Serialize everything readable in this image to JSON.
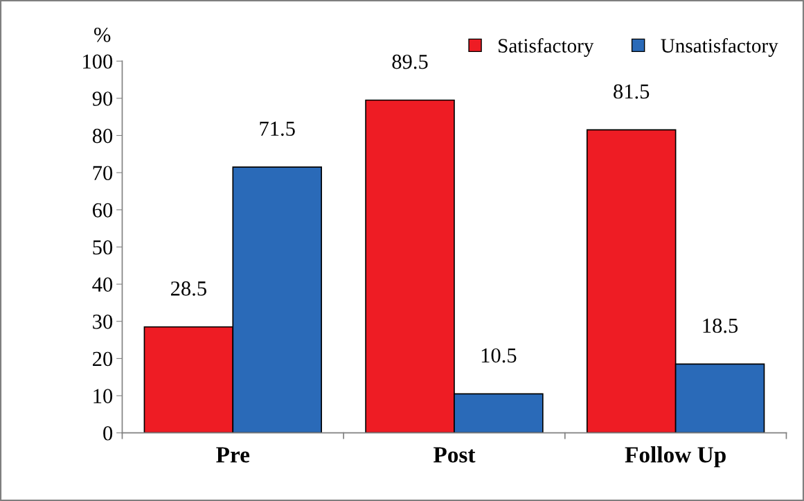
{
  "chart_data": {
    "type": "bar",
    "ylabel": "%",
    "categories": [
      "Pre",
      "Post",
      "Follow Up"
    ],
    "series": [
      {
        "name": "Satisfactory",
        "color": "#ee1c24",
        "values": [
          28.5,
          89.5,
          81.5
        ]
      },
      {
        "name": "Unsatisfactory",
        "color": "#2a6ab8",
        "values": [
          71.5,
          10.5,
          18.5
        ]
      }
    ],
    "ylim": [
      0,
      100
    ],
    "yticks": [
      0,
      10,
      20,
      30,
      40,
      50,
      60,
      70,
      80,
      90,
      100
    ],
    "grid": false,
    "legend": "top right",
    "data_labels": true
  }
}
